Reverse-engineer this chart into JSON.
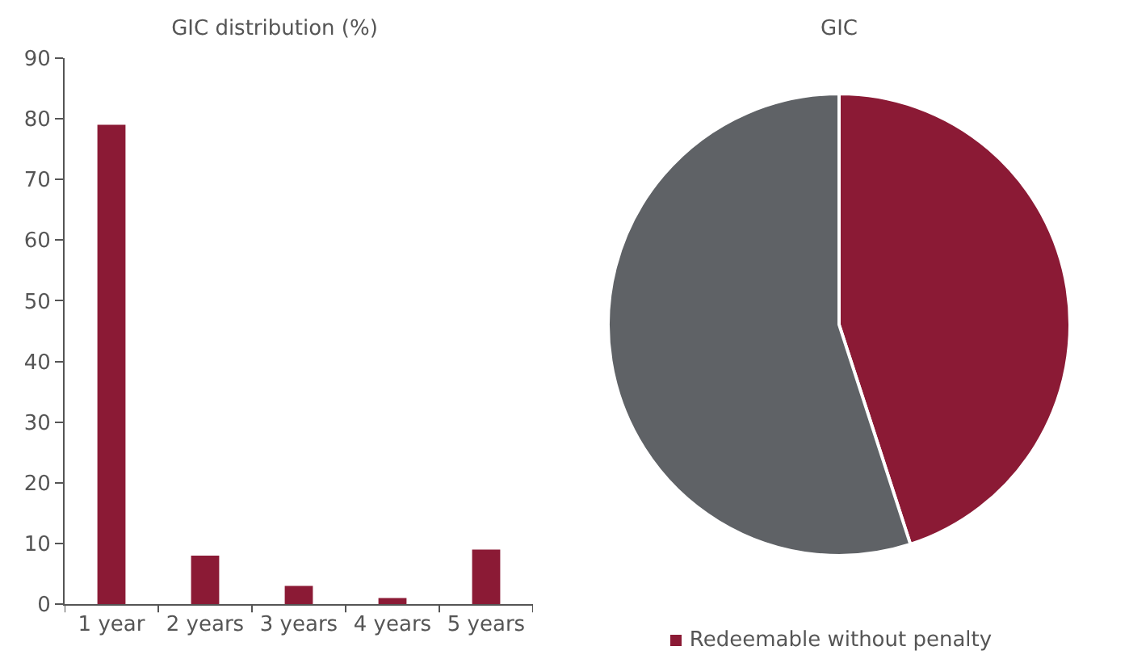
{
  "chart_data": [
    {
      "type": "bar",
      "title": "GIC distribution (%)",
      "categories": [
        "1 year",
        "2 years",
        "3 years",
        "4 years",
        "5 years"
      ],
      "values": [
        79,
        8,
        3,
        1,
        9
      ],
      "color": "#8b1a35",
      "ylim": [
        0,
        90
      ],
      "yticks": [
        0,
        10,
        20,
        30,
        40,
        50,
        60,
        70,
        80,
        90
      ],
      "grid": false,
      "legend": false
    },
    {
      "type": "pie",
      "title": "GIC",
      "categories": [
        "Redeemable without penalty",
        null
      ],
      "values": [
        45,
        55
      ],
      "colors": [
        "#8b1a35",
        "#5f6266"
      ],
      "legend": "bottom"
    }
  ]
}
